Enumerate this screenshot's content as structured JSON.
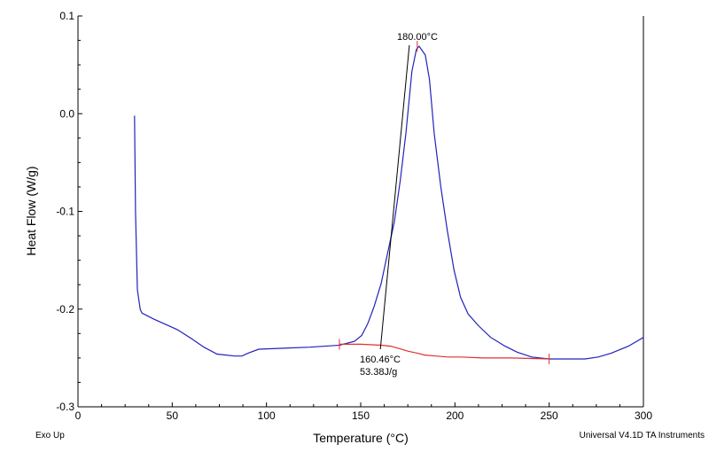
{
  "chart_data": {
    "type": "line",
    "title": "",
    "xlabel": "Temperature (°C)",
    "ylabel": "Heat Flow (W/g)",
    "xlim": [
      0,
      300
    ],
    "ylim": [
      -0.3,
      0.1
    ],
    "x_ticks": [
      "0",
      "50",
      "100",
      "150",
      "200",
      "250",
      "300"
    ],
    "y_ticks": [
      "0.1",
      "0.0",
      "-0.1",
      "-0.2",
      "-0.3"
    ],
    "grid": false,
    "footer_left": "Exo Up",
    "footer_right": "Universal V4.1D TA Instruments",
    "colors": {
      "curve": "#2222bb",
      "baseline": "#e03030",
      "tangent": "#000000"
    },
    "series": [
      {
        "x": [
          30,
          30.5,
          31.5,
          33,
          33.9,
          40,
          52.7,
          60,
          66.8,
          73.8,
          83.2,
          87,
          90.3,
          95.9,
          109,
          123,
          138.7,
          146.7,
          150.5,
          153.7,
          157,
          160.8,
          164,
          167.8,
          171,
          174,
          177.2,
          179.6,
          181,
          184.3,
          186.5,
          189,
          192.5,
          196,
          199.5,
          203,
          207,
          212.5,
          219,
          226.6,
          233,
          240.7,
          250,
          260,
          269,
          276,
          283,
          292,
          300
        ],
        "y": [
          -0.002,
          -0.1,
          -0.18,
          -0.2,
          -0.204,
          -0.21,
          -0.221,
          -0.23,
          -0.239,
          -0.246,
          -0.248,
          -0.248,
          -0.245,
          -0.241,
          -0.24,
          -0.239,
          -0.237,
          -0.233,
          -0.227,
          -0.215,
          -0.198,
          -0.174,
          -0.145,
          -0.111,
          -0.068,
          -0.02,
          0.0435,
          0.066,
          0.069,
          0.06,
          0.035,
          -0.02,
          -0.075,
          -0.12,
          -0.16,
          -0.188,
          -0.205,
          -0.217,
          -0.229,
          -0.238,
          -0.244,
          -0.249,
          -0.251,
          -0.251,
          -0.251,
          -0.249,
          -0.245,
          -0.238,
          -0.229
        ]
      },
      {
        "x": [
          138.7,
          150,
          160.8,
          166,
          170,
          175,
          180,
          184,
          190,
          196,
          203,
          215,
          230,
          250
        ],
        "y": [
          -0.236,
          -0.236,
          -0.237,
          -0.238,
          -0.24,
          -0.243,
          -0.245,
          -0.247,
          -0.248,
          -0.249,
          -0.249,
          -0.25,
          -0.25,
          -0.251
        ]
      }
    ],
    "tangent": {
      "x": [
        160.46,
        175.8
      ],
      "y": [
        -0.241,
        0.07
      ]
    },
    "markers": [
      {
        "x": 138.7,
        "y": -0.236
      },
      {
        "x": 250,
        "y": -0.251
      },
      {
        "x": 180,
        "y": 0.069
      }
    ],
    "annotations": {
      "peak": "180.00°C",
      "onset_temp": "160.46°C",
      "enthalpy": "53.38J/g"
    }
  }
}
